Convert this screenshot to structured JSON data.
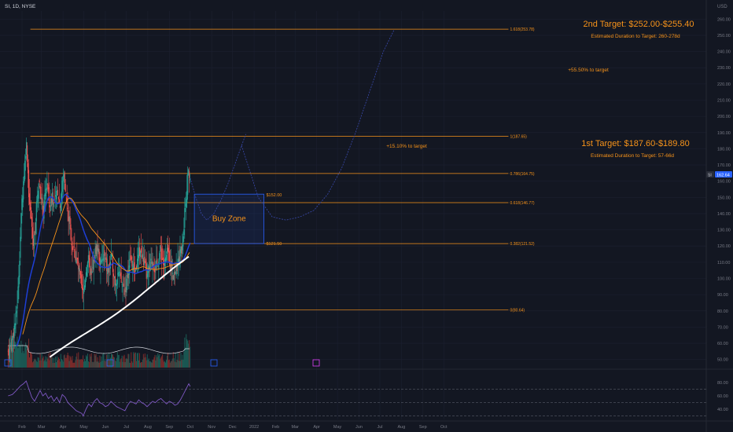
{
  "symbol_label": "SI, 1D, NYSE",
  "currency": "USD",
  "last_price": "162.64",
  "symbol_short": "SI",
  "colors": {
    "background": "#131722",
    "up": "#26a69a",
    "down": "#ef5350",
    "fib": "#f7931a",
    "text_orange": "#f7931a",
    "buy_zone_border": "#2962ff",
    "ma_fast": "#1e3fd6",
    "ma_mid": "#f7931a",
    "ma_slow": "#ffffff",
    "axis_text": "#787b86"
  },
  "chart_data": [
    {
      "type": "line",
      "title": "",
      "y_axis": {
        "min": 45,
        "max": 265,
        "ticks": [
          50,
          60,
          70,
          80,
          90,
          100,
          110,
          120,
          130,
          140,
          150,
          160,
          170,
          180,
          190,
          200,
          210,
          220,
          230,
          240,
          250,
          260
        ],
        "scale": "linear",
        "position": "right"
      },
      "x_axis": {
        "ticks": [
          {
            "label": "Feb",
            "d": 0
          },
          {
            "label": "Mar",
            "d": 28
          },
          {
            "label": "Apr",
            "d": 59
          },
          {
            "label": "May",
            "d": 89
          },
          {
            "label": "Jun",
            "d": 120
          },
          {
            "label": "Jul",
            "d": 150
          },
          {
            "label": "Aug",
            "d": 181
          },
          {
            "label": "Sep",
            "d": 212
          },
          {
            "label": "Oct",
            "d": 242
          },
          {
            "label": "Nov",
            "d": 273
          },
          {
            "label": "Dec",
            "d": 303
          },
          {
            "label": "2022",
            "d": 334
          },
          {
            "label": "Feb",
            "d": 365
          },
          {
            "label": "Mar",
            "d": 393
          },
          {
            "label": "Apr",
            "d": 424
          },
          {
            "label": "May",
            "d": 454
          },
          {
            "label": "Jun",
            "d": 485
          },
          {
            "label": "Jul",
            "d": 515
          },
          {
            "label": "Aug",
            "d": 546
          },
          {
            "label": "Sep",
            "d": 577
          },
          {
            "label": "Oct",
            "d": 607
          }
        ]
      },
      "price_path": [
        [
          -20,
          55
        ],
        [
          -15,
          60
        ],
        [
          -12,
          68
        ],
        [
          -9,
          75
        ],
        [
          -6,
          90
        ],
        [
          -4,
          110
        ],
        [
          -2,
          130
        ],
        [
          0,
          150
        ],
        [
          2,
          160
        ],
        [
          4,
          170
        ],
        [
          6,
          185
        ],
        [
          8,
          172
        ],
        [
          10,
          150
        ],
        [
          12,
          140
        ],
        [
          14,
          132
        ],
        [
          16,
          120
        ],
        [
          18,
          128
        ],
        [
          20,
          140
        ],
        [
          22,
          150
        ],
        [
          24,
          160
        ],
        [
          26,
          158
        ],
        [
          28,
          150
        ],
        [
          30,
          140
        ],
        [
          32,
          145
        ],
        [
          34,
          155
        ],
        [
          36,
          160
        ],
        [
          38,
          150
        ],
        [
          40,
          142
        ],
        [
          42,
          148
        ],
        [
          44,
          153
        ],
        [
          46,
          145
        ],
        [
          48,
          148
        ],
        [
          50,
          152
        ],
        [
          52,
          155
        ],
        [
          54,
          145
        ],
        [
          56,
          150
        ],
        [
          58,
          158
        ],
        [
          60,
          165
        ],
        [
          62,
          160
        ],
        [
          64,
          148
        ],
        [
          66,
          140
        ],
        [
          68,
          135
        ],
        [
          70,
          128
        ],
        [
          72,
          120
        ],
        [
          74,
          118
        ],
        [
          76,
          115
        ],
        [
          78,
          112
        ],
        [
          80,
          108
        ],
        [
          82,
          104
        ],
        [
          84,
          98
        ],
        [
          86,
          92
        ],
        [
          88,
          90
        ],
        [
          90,
          96
        ],
        [
          92,
          105
        ],
        [
          94,
          112
        ],
        [
          96,
          110
        ],
        [
          98,
          104
        ],
        [
          100,
          100
        ],
        [
          102,
          105
        ],
        [
          104,
          112
        ],
        [
          106,
          118
        ],
        [
          108,
          120
        ],
        [
          110,
          116
        ],
        [
          112,
          110
        ],
        [
          114,
          108
        ],
        [
          116,
          112
        ],
        [
          118,
          114
        ],
        [
          120,
          110
        ],
        [
          122,
          106
        ],
        [
          124,
          104
        ],
        [
          126,
          108
        ],
        [
          128,
          112
        ],
        [
          130,
          110
        ],
        [
          132,
          104
        ],
        [
          134,
          98
        ],
        [
          136,
          100
        ],
        [
          138,
          104
        ],
        [
          140,
          102
        ],
        [
          142,
          98
        ],
        [
          144,
          96
        ],
        [
          146,
          94
        ],
        [
          148,
          92
        ],
        [
          150,
          96
        ],
        [
          152,
          102
        ],
        [
          154,
          108
        ],
        [
          156,
          112
        ],
        [
          158,
          110
        ],
        [
          160,
          106
        ],
        [
          162,
          104
        ],
        [
          164,
          106
        ],
        [
          166,
          110
        ],
        [
          168,
          115
        ],
        [
          170,
          118
        ],
        [
          172,
          114
        ],
        [
          174,
          112
        ],
        [
          176,
          108
        ],
        [
          178,
          104
        ],
        [
          180,
          100
        ],
        [
          182,
          104
        ],
        [
          184,
          106
        ],
        [
          186,
          110
        ],
        [
          188,
          112
        ],
        [
          190,
          108
        ],
        [
          192,
          105
        ],
        [
          194,
          108
        ],
        [
          196,
          112
        ],
        [
          198,
          116
        ],
        [
          200,
          118
        ],
        [
          202,
          112
        ],
        [
          204,
          108
        ],
        [
          206,
          110
        ],
        [
          208,
          114
        ],
        [
          210,
          116
        ],
        [
          212,
          112
        ],
        [
          214,
          108
        ],
        [
          216,
          106
        ],
        [
          218,
          103
        ],
        [
          220,
          104
        ],
        [
          222,
          106
        ],
        [
          224,
          108
        ],
        [
          226,
          112
        ],
        [
          228,
          116
        ],
        [
          230,
          120
        ],
        [
          232,
          128
        ],
        [
          234,
          140
        ],
        [
          236,
          152
        ],
        [
          238,
          160
        ],
        [
          240,
          165
        ],
        [
          242,
          162
        ]
      ],
      "fib_levels": [
        {
          "label": "1.618(253.78)",
          "value": 253.78
        },
        {
          "label": "1(187.65)",
          "value": 187.65
        },
        {
          "label": "0.786(164.75)",
          "value": 164.75
        },
        {
          "label": "0.618(146.77)",
          "value": 146.77
        },
        {
          "label": "0.382(121.52)",
          "value": 121.52
        },
        {
          "label": "0(80.64)",
          "value": 80.64
        }
      ],
      "buy_zone": {
        "label": "Buy Zone",
        "high_label": "$152.00",
        "low_label": "$121.50",
        "high": 152.0,
        "low": 121.5,
        "d_start": 248,
        "d_end": 348
      },
      "projection_path": [
        [
          242,
          162
        ],
        [
          250,
          150
        ],
        [
          258,
          140
        ],
        [
          266,
          136
        ],
        [
          276,
          140
        ],
        [
          286,
          148
        ],
        [
          296,
          158
        ],
        [
          306,
          170
        ],
        [
          316,
          182
        ],
        [
          322,
          189
        ],
        [
          316,
          182
        ],
        [
          340,
          150
        ],
        [
          360,
          138
        ],
        [
          380,
          136
        ],
        [
          400,
          138
        ],
        [
          420,
          142
        ],
        [
          440,
          152
        ],
        [
          460,
          168
        ],
        [
          480,
          190
        ],
        [
          500,
          215
        ],
        [
          520,
          240
        ],
        [
          535,
          253
        ]
      ],
      "annotations": [
        {
          "text": "2nd Target: $252.00-$255.40",
          "big": true
        },
        {
          "text": "Estimated Duration to Target: 260-278d",
          "big": false
        },
        {
          "text": "+55.50% to target",
          "big": false
        },
        {
          "text": "1st Target: $187.60-$189.80",
          "big": true
        },
        {
          "text": "Estimated Duration to Target: 57-66d",
          "big": false
        },
        {
          "text": "+15.10% to target",
          "big": false
        }
      ]
    },
    {
      "type": "line",
      "title": "",
      "y_axis": {
        "ticks": [
          40.0,
          60.0,
          80.0
        ],
        "range": [
          25,
          95
        ],
        "dashed_levels": [
          30,
          50,
          70
        ]
      },
      "rsi_path": [
        [
          -20,
          60
        ],
        [
          -14,
          62
        ],
        [
          -8,
          68
        ],
        [
          -2,
          75
        ],
        [
          2,
          78
        ],
        [
          6,
          82
        ],
        [
          10,
          70
        ],
        [
          14,
          58
        ],
        [
          18,
          52
        ],
        [
          22,
          60
        ],
        [
          26,
          68
        ],
        [
          30,
          60
        ],
        [
          34,
          64
        ],
        [
          38,
          56
        ],
        [
          42,
          60
        ],
        [
          46,
          52
        ],
        [
          50,
          58
        ],
        [
          54,
          50
        ],
        [
          58,
          62
        ],
        [
          62,
          58
        ],
        [
          66,
          50
        ],
        [
          70,
          46
        ],
        [
          74,
          42
        ],
        [
          78,
          38
        ],
        [
          82,
          36
        ],
        [
          86,
          34
        ],
        [
          88,
          30
        ],
        [
          92,
          40
        ],
        [
          96,
          48
        ],
        [
          100,
          44
        ],
        [
          104,
          52
        ],
        [
          108,
          56
        ],
        [
          112,
          50
        ],
        [
          116,
          48
        ],
        [
          120,
          44
        ],
        [
          124,
          46
        ],
        [
          128,
          52
        ],
        [
          132,
          48
        ],
        [
          136,
          44
        ],
        [
          140,
          42
        ],
        [
          144,
          40
        ],
        [
          148,
          38
        ],
        [
          152,
          46
        ],
        [
          156,
          52
        ],
        [
          160,
          50
        ],
        [
          164,
          48
        ],
        [
          168,
          54
        ],
        [
          172,
          50
        ],
        [
          176,
          48
        ],
        [
          180,
          44
        ],
        [
          184,
          48
        ],
        [
          188,
          52
        ],
        [
          192,
          50
        ],
        [
          196,
          54
        ],
        [
          200,
          56
        ],
        [
          204,
          52
        ],
        [
          208,
          48
        ],
        [
          212,
          52
        ],
        [
          216,
          50
        ],
        [
          220,
          46
        ],
        [
          224,
          48
        ],
        [
          228,
          54
        ],
        [
          232,
          62
        ],
        [
          236,
          70
        ],
        [
          240,
          78
        ],
        [
          242,
          74
        ]
      ]
    }
  ]
}
